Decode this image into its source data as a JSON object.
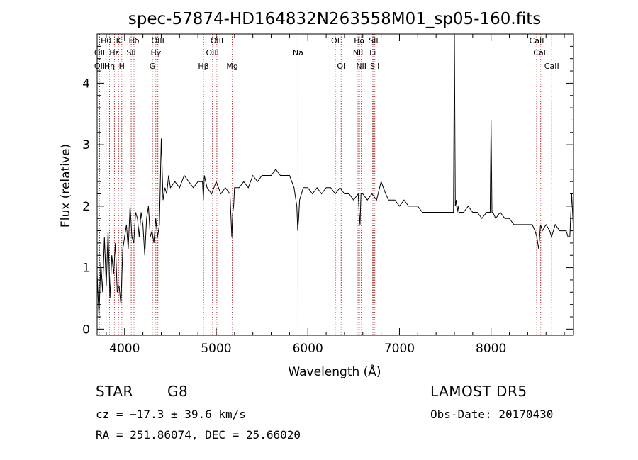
{
  "chart_data": {
    "type": "line",
    "title": "spec-57874-HD164832N263558M01_sp05-160.fits",
    "xlabel": "Wavelength (Å)",
    "ylabel": "Flux (relative)",
    "xlim": [
      3700,
      8900
    ],
    "ylim": [
      -0.1,
      4.8
    ],
    "xticks": [
      4000,
      5000,
      6000,
      7000,
      8000
    ],
    "yticks": [
      0,
      1,
      2,
      3,
      4
    ],
    "grid": false,
    "legend": "none",
    "line_color": "#000000",
    "marker_color": "#a52a2a",
    "spectral_lines": [
      {
        "label": "Hθ",
        "wavelength": 3798,
        "row": 0
      },
      {
        "label": "K",
        "wavelength": 3934,
        "row": 0
      },
      {
        "label": "Hδ",
        "wavelength": 4102,
        "row": 0
      },
      {
        "label": "OIII",
        "wavelength": 4363,
        "row": 0
      },
      {
        "label": "OIII",
        "wavelength": 5007,
        "row": 0
      },
      {
        "label": "OI",
        "wavelength": 6300,
        "row": 0
      },
      {
        "label": "Hα",
        "wavelength": 6563,
        "row": 0
      },
      {
        "label": "SII",
        "wavelength": 6717,
        "row": 0
      },
      {
        "label": "OII",
        "wavelength": 3727,
        "row": 1
      },
      {
        "label": "Hε",
        "wavelength": 3889,
        "row": 1
      },
      {
        "label": "SII",
        "wavelength": 4072,
        "row": 1
      },
      {
        "label": "Hγ",
        "wavelength": 4341,
        "row": 1
      },
      {
        "label": "OIII",
        "wavelength": 4959,
        "row": 1
      },
      {
        "label": "NII",
        "wavelength": 6548,
        "row": 1
      },
      {
        "label": "Li",
        "wavelength": 6708,
        "row": 1
      },
      {
        "label": "CaII",
        "wavelength": 8498,
        "row": 0
      },
      {
        "label": "CaII",
        "wavelength": 8542,
        "row": 1
      },
      {
        "label": "OII",
        "wavelength": 3727,
        "row": 2
      },
      {
        "label": "Hη",
        "wavelength": 3835,
        "row": 2
      },
      {
        "label": "H",
        "wavelength": 3969,
        "row": 2
      },
      {
        "label": "G",
        "wavelength": 4304,
        "row": 2
      },
      {
        "label": "Hβ",
        "wavelength": 4861,
        "row": 2
      },
      {
        "label": "Mg",
        "wavelength": 5175,
        "row": 2
      },
      {
        "label": "Na",
        "wavelength": 5893,
        "row": 1
      },
      {
        "label": "OI",
        "wavelength": 6364,
        "row": 2
      },
      {
        "label": "NII",
        "wavelength": 6584,
        "row": 2
      },
      {
        "label": "SII",
        "wavelength": 6731,
        "row": 2
      },
      {
        "label": "CaII",
        "wavelength": 8662,
        "row": 2
      }
    ],
    "series": [
      {
        "x": [
          3700,
          3720,
          3740,
          3760,
          3780,
          3800,
          3820,
          3840,
          3860,
          3880,
          3900,
          3920,
          3940,
          3960,
          3980,
          4000,
          4020,
          4040,
          4060,
          4080,
          4100,
          4120,
          4140,
          4160,
          4180,
          4200,
          4220,
          4240,
          4260,
          4280,
          4300,
          4320,
          4340,
          4360,
          4380,
          4400,
          4420,
          4440,
          4460,
          4480,
          4500,
          4550,
          4600,
          4650,
          4700,
          4750,
          4800,
          4850,
          4860,
          4870,
          4900,
          4950,
          5000,
          5050,
          5100,
          5150,
          5170,
          5180,
          5190,
          5200,
          5250,
          5300,
          5350,
          5400,
          5450,
          5500,
          5550,
          5600,
          5650,
          5700,
          5750,
          5800,
          5850,
          5880,
          5890,
          5900,
          5910,
          5950,
          6000,
          6050,
          6100,
          6150,
          6200,
          6250,
          6300,
          6350,
          6400,
          6450,
          6500,
          6550,
          6560,
          6570,
          6580,
          6600,
          6650,
          6700,
          6750,
          6800,
          6850,
          6880,
          6900,
          6950,
          7000,
          7050,
          7100,
          7150,
          7200,
          7250,
          7300,
          7350,
          7400,
          7450,
          7500,
          7550,
          7590,
          7600,
          7610,
          7620,
          7630,
          7640,
          7650,
          7700,
          7750,
          7800,
          7850,
          7900,
          7950,
          7990,
          8000,
          8010,
          8020,
          8050,
          8100,
          8150,
          8200,
          8250,
          8300,
          8350,
          8400,
          8450,
          8480,
          8500,
          8520,
          8540,
          8560,
          8600,
          8640,
          8660,
          8680,
          8700,
          8750,
          8800,
          8820,
          8840,
          8860,
          8880,
          8900
        ],
        "y": [
          0.9,
          0.2,
          1.1,
          0.6,
          1.5,
          0.7,
          1.6,
          0.5,
          1.2,
          0.9,
          1.4,
          0.6,
          0.7,
          0.4,
          1.3,
          1.5,
          1.7,
          1.3,
          2.0,
          1.5,
          1.4,
          1.9,
          1.8,
          1.5,
          1.9,
          1.7,
          1.2,
          1.8,
          2.0,
          1.5,
          1.6,
          1.4,
          1.8,
          1.5,
          1.7,
          3.1,
          2.1,
          2.3,
          2.2,
          2.5,
          2.3,
          2.4,
          2.3,
          2.5,
          2.4,
          2.3,
          2.4,
          2.4,
          2.1,
          2.5,
          2.3,
          2.2,
          2.4,
          2.2,
          2.3,
          2.2,
          1.5,
          1.9,
          2.0,
          2.3,
          2.3,
          2.4,
          2.3,
          2.5,
          2.4,
          2.5,
          2.5,
          2.5,
          2.6,
          2.5,
          2.5,
          2.5,
          2.3,
          2.0,
          1.6,
          1.8,
          2.1,
          2.3,
          2.3,
          2.2,
          2.3,
          2.2,
          2.3,
          2.3,
          2.2,
          2.3,
          2.2,
          2.2,
          2.1,
          2.2,
          1.9,
          1.7,
          2.2,
          2.2,
          2.1,
          2.2,
          2.1,
          2.4,
          2.2,
          2.1,
          2.1,
          2.1,
          2.0,
          2.1,
          2.0,
          2.0,
          2.0,
          1.9,
          1.9,
          1.9,
          1.9,
          1.9,
          1.9,
          1.9,
          1.9,
          4.8,
          2.0,
          2.1,
          1.9,
          2.0,
          1.9,
          1.9,
          2.0,
          1.9,
          1.9,
          1.8,
          1.9,
          1.9,
          3.4,
          1.9,
          1.9,
          1.8,
          1.9,
          1.8,
          1.8,
          1.7,
          1.7,
          1.7,
          1.7,
          1.7,
          1.6,
          1.5,
          1.3,
          1.7,
          1.6,
          1.7,
          1.6,
          1.5,
          1.6,
          1.7,
          1.6,
          1.6,
          1.6,
          1.5,
          1.5,
          2.2,
          1.6
        ]
      }
    ]
  },
  "info": {
    "class": "STAR",
    "subclass": "G8",
    "survey": "LAMOST DR5",
    "cz": "cz = −17.3 ± 39.6 km/s",
    "obs_date": "Obs-Date: 20170430",
    "coords": "RA = 251.86074, DEC =  25.66020"
  }
}
